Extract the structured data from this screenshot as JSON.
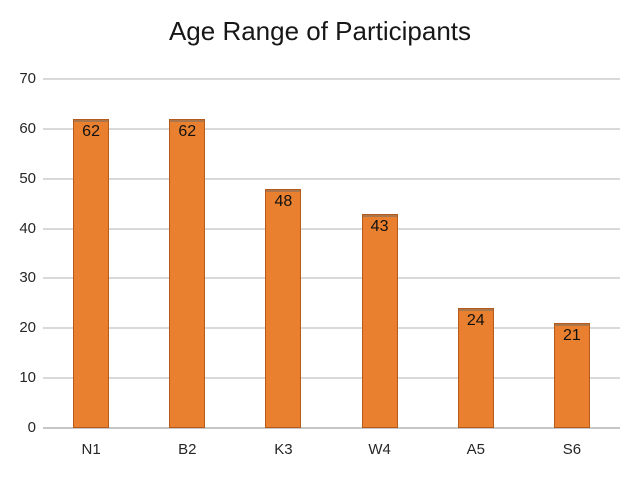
{
  "chart_data": {
    "type": "bar",
    "title": "Age Range of Participants",
    "categories": [
      "N1",
      "B2",
      "K3",
      "W4",
      "A5",
      "S6"
    ],
    "values": [
      62,
      62,
      48,
      43,
      24,
      21
    ],
    "xlabel": "",
    "ylabel": "",
    "ylim": [
      0,
      70
    ],
    "ytick_step": 10,
    "yticks": [
      0,
      10,
      20,
      30,
      40,
      50,
      60,
      70
    ],
    "grid": "horizontal",
    "legend_position": "none",
    "show_value_labels": true,
    "value_label_position": "inside-top",
    "colors": {
      "bar_fill": "#E8802F",
      "bar_border": "#B55A1A",
      "gridline": "#D9D9D9",
      "axis_line": "#C6C6C6",
      "text": "#262626",
      "title_text": "#171717",
      "value_label_text": "#111111",
      "background": "#FFFFFF"
    }
  }
}
